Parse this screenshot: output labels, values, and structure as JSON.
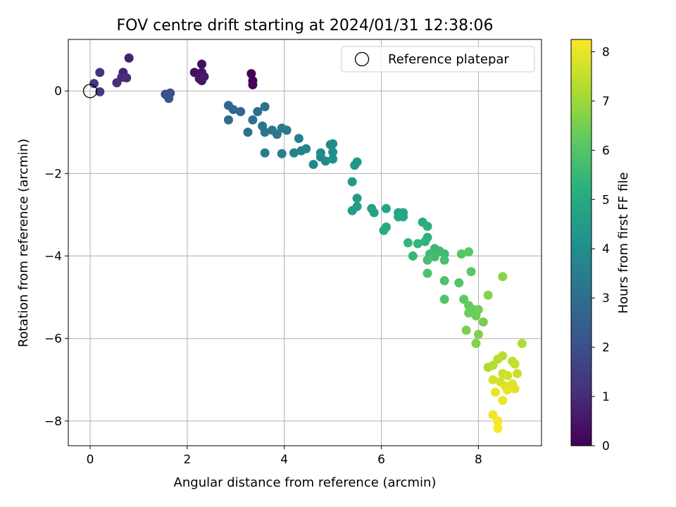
{
  "chart_data": {
    "type": "scatter",
    "title": "FOV centre drift starting at 2024/01/31 12:38:06",
    "xlabel": "Angular distance from reference (arcmin)",
    "ylabel": "Rotation from reference (arcmin)",
    "xlim": [
      -0.45,
      9.3
    ],
    "ylim": [
      -8.6,
      1.25
    ],
    "xticks": [
      0,
      2,
      4,
      6,
      8
    ],
    "yticks": [
      0,
      -2,
      -4,
      -6,
      -8
    ],
    "xtick_labels": [
      "0",
      "2",
      "4",
      "6",
      "8"
    ],
    "ytick_labels": [
      "0",
      "−2",
      "−4",
      "−6",
      "−8"
    ],
    "grid": true,
    "legend": {
      "position": "top-right",
      "label": "Reference platepar"
    },
    "reference_point": {
      "x": 0,
      "y": 0
    },
    "colorbar": {
      "label": "Hours from first FF file",
      "min": 0,
      "max": 8.25,
      "ticks": [
        0,
        1,
        2,
        3,
        4,
        5,
        6,
        7,
        8
      ],
      "tick_labels": [
        "0",
        "1",
        "2",
        "3",
        "4",
        "5",
        "6",
        "7",
        "8"
      ],
      "colormap": "viridis"
    },
    "points": [
      {
        "x": 3.32,
        "y": 0.42,
        "t": 0.05
      },
      {
        "x": 3.35,
        "y": 0.25,
        "t": 0.1
      },
      {
        "x": 3.35,
        "y": 0.15,
        "t": 0.15
      },
      {
        "x": 2.3,
        "y": 0.65,
        "t": 0.3
      },
      {
        "x": 2.15,
        "y": 0.45,
        "t": 0.35
      },
      {
        "x": 2.25,
        "y": 0.4,
        "t": 0.4
      },
      {
        "x": 2.3,
        "y": 0.45,
        "t": 0.45
      },
      {
        "x": 2.25,
        "y": 0.3,
        "t": 0.5
      },
      {
        "x": 2.3,
        "y": 0.25,
        "t": 0.55
      },
      {
        "x": 2.35,
        "y": 0.35,
        "t": 0.6
      },
      {
        "x": 0.8,
        "y": 0.8,
        "t": 0.75
      },
      {
        "x": 0.68,
        "y": 0.45,
        "t": 0.85
      },
      {
        "x": 0.65,
        "y": 0.33,
        "t": 0.95
      },
      {
        "x": 0.75,
        "y": 0.32,
        "t": 1.05
      },
      {
        "x": 0.55,
        "y": 0.2,
        "t": 1.15
      },
      {
        "x": 0.2,
        "y": 0.45,
        "t": 1.3
      },
      {
        "x": 0.08,
        "y": 0.18,
        "t": 1.4
      },
      {
        "x": 0.2,
        "y": -0.02,
        "t": 1.5
      },
      {
        "x": 1.55,
        "y": -0.08,
        "t": 2.0
      },
      {
        "x": 1.65,
        "y": -0.05,
        "t": 2.05
      },
      {
        "x": 1.62,
        "y": -0.18,
        "t": 2.1
      },
      {
        "x": 2.85,
        "y": -0.35,
        "t": 2.7
      },
      {
        "x": 2.95,
        "y": -0.45,
        "t": 2.75
      },
      {
        "x": 3.1,
        "y": -0.5,
        "t": 2.8
      },
      {
        "x": 2.85,
        "y": -0.7,
        "t": 2.85
      },
      {
        "x": 3.35,
        "y": -0.7,
        "t": 2.95
      },
      {
        "x": 3.45,
        "y": -0.5,
        "t": 3.0
      },
      {
        "x": 3.6,
        "y": -0.38,
        "t": 3.05
      },
      {
        "x": 3.25,
        "y": -1.0,
        "t": 3.1
      },
      {
        "x": 3.55,
        "y": -0.85,
        "t": 3.15
      },
      {
        "x": 3.6,
        "y": -1.0,
        "t": 3.2
      },
      {
        "x": 3.75,
        "y": -0.95,
        "t": 3.25
      },
      {
        "x": 3.85,
        "y": -1.05,
        "t": 3.3
      },
      {
        "x": 3.95,
        "y": -0.9,
        "t": 3.35
      },
      {
        "x": 4.05,
        "y": -0.95,
        "t": 3.4
      },
      {
        "x": 3.6,
        "y": -1.5,
        "t": 3.45
      },
      {
        "x": 3.95,
        "y": -1.52,
        "t": 3.5
      },
      {
        "x": 4.3,
        "y": -1.15,
        "t": 3.55
      },
      {
        "x": 4.2,
        "y": -1.5,
        "t": 3.6
      },
      {
        "x": 4.35,
        "y": -1.45,
        "t": 3.65
      },
      {
        "x": 4.45,
        "y": -1.4,
        "t": 3.7
      },
      {
        "x": 4.6,
        "y": -1.78,
        "t": 3.75
      },
      {
        "x": 4.75,
        "y": -1.6,
        "t": 3.8
      },
      {
        "x": 4.85,
        "y": -1.7,
        "t": 3.85
      },
      {
        "x": 4.75,
        "y": -1.5,
        "t": 3.9
      },
      {
        "x": 4.95,
        "y": -1.3,
        "t": 3.95
      },
      {
        "x": 5.0,
        "y": -1.28,
        "t": 4.0
      },
      {
        "x": 5.0,
        "y": -1.48,
        "t": 4.05
      },
      {
        "x": 5.0,
        "y": -1.65,
        "t": 4.1
      },
      {
        "x": 5.5,
        "y": -1.72,
        "t": 4.3
      },
      {
        "x": 5.45,
        "y": -1.8,
        "t": 4.35
      },
      {
        "x": 5.4,
        "y": -2.2,
        "t": 4.4
      },
      {
        "x": 5.5,
        "y": -2.6,
        "t": 4.45
      },
      {
        "x": 5.4,
        "y": -2.9,
        "t": 4.5
      },
      {
        "x": 5.5,
        "y": -2.8,
        "t": 4.55
      },
      {
        "x": 5.8,
        "y": -2.85,
        "t": 4.65
      },
      {
        "x": 5.85,
        "y": -2.95,
        "t": 4.7
      },
      {
        "x": 6.1,
        "y": -2.85,
        "t": 4.75
      },
      {
        "x": 6.35,
        "y": -2.95,
        "t": 4.8
      },
      {
        "x": 6.45,
        "y": -2.95,
        "t": 4.85
      },
      {
        "x": 6.35,
        "y": -3.05,
        "t": 4.9
      },
      {
        "x": 6.45,
        "y": -3.05,
        "t": 4.95
      },
      {
        "x": 6.1,
        "y": -3.3,
        "t": 5.0
      },
      {
        "x": 6.05,
        "y": -3.38,
        "t": 5.05
      },
      {
        "x": 6.85,
        "y": -3.18,
        "t": 5.15
      },
      {
        "x": 6.95,
        "y": -3.28,
        "t": 5.2
      },
      {
        "x": 6.95,
        "y": -3.55,
        "t": 5.25
      },
      {
        "x": 6.9,
        "y": -3.65,
        "t": 5.3
      },
      {
        "x": 6.75,
        "y": -3.7,
        "t": 5.35
      },
      {
        "x": 6.55,
        "y": -3.68,
        "t": 5.4
      },
      {
        "x": 6.65,
        "y": -4.0,
        "t": 5.45
      },
      {
        "x": 7.1,
        "y": -3.82,
        "t": 5.5
      },
      {
        "x": 7.2,
        "y": -3.88,
        "t": 5.55
      },
      {
        "x": 7.3,
        "y": -3.95,
        "t": 5.6
      },
      {
        "x": 7.0,
        "y": -3.95,
        "t": 5.65
      },
      {
        "x": 7.1,
        "y": -4.02,
        "t": 5.7
      },
      {
        "x": 6.95,
        "y": -4.1,
        "t": 5.75
      },
      {
        "x": 7.3,
        "y": -4.1,
        "t": 5.8
      },
      {
        "x": 6.95,
        "y": -4.42,
        "t": 5.85
      },
      {
        "x": 7.3,
        "y": -4.6,
        "t": 5.9
      },
      {
        "x": 7.3,
        "y": -5.05,
        "t": 5.95
      },
      {
        "x": 7.6,
        "y": -4.65,
        "t": 6.0
      },
      {
        "x": 7.65,
        "y": -3.95,
        "t": 6.05
      },
      {
        "x": 7.8,
        "y": -3.9,
        "t": 6.1
      },
      {
        "x": 7.85,
        "y": -4.38,
        "t": 6.15
      },
      {
        "x": 7.7,
        "y": -5.05,
        "t": 6.2
      },
      {
        "x": 7.8,
        "y": -5.2,
        "t": 6.25
      },
      {
        "x": 7.9,
        "y": -5.3,
        "t": 6.3
      },
      {
        "x": 7.8,
        "y": -5.38,
        "t": 6.35
      },
      {
        "x": 7.95,
        "y": -5.45,
        "t": 6.4
      },
      {
        "x": 8.0,
        "y": -5.3,
        "t": 6.45
      },
      {
        "x": 8.1,
        "y": -5.6,
        "t": 6.5
      },
      {
        "x": 7.75,
        "y": -5.8,
        "t": 6.55
      },
      {
        "x": 8.0,
        "y": -5.9,
        "t": 6.6
      },
      {
        "x": 7.95,
        "y": -6.12,
        "t": 6.65
      },
      {
        "x": 8.2,
        "y": -4.95,
        "t": 6.7
      },
      {
        "x": 8.5,
        "y": -4.5,
        "t": 6.75
      },
      {
        "x": 8.9,
        "y": -6.12,
        "t": 7.2
      },
      {
        "x": 8.2,
        "y": -6.7,
        "t": 7.25
      },
      {
        "x": 8.3,
        "y": -6.65,
        "t": 7.3
      },
      {
        "x": 8.4,
        "y": -6.5,
        "t": 7.35
      },
      {
        "x": 8.5,
        "y": -6.42,
        "t": 7.4
      },
      {
        "x": 8.7,
        "y": -6.55,
        "t": 7.45
      },
      {
        "x": 8.75,
        "y": -6.62,
        "t": 7.5
      },
      {
        "x": 8.8,
        "y": -6.85,
        "t": 7.55
      },
      {
        "x": 8.5,
        "y": -6.85,
        "t": 7.6
      },
      {
        "x": 8.6,
        "y": -6.9,
        "t": 7.65
      },
      {
        "x": 8.3,
        "y": -7.0,
        "t": 7.7
      },
      {
        "x": 8.45,
        "y": -7.05,
        "t": 7.75
      },
      {
        "x": 8.55,
        "y": -7.15,
        "t": 7.8
      },
      {
        "x": 8.7,
        "y": -7.1,
        "t": 7.85
      },
      {
        "x": 8.75,
        "y": -7.22,
        "t": 7.9
      },
      {
        "x": 8.6,
        "y": -7.25,
        "t": 7.95
      },
      {
        "x": 8.35,
        "y": -7.3,
        "t": 8.0
      },
      {
        "x": 8.5,
        "y": -7.5,
        "t": 8.05
      },
      {
        "x": 8.3,
        "y": -7.85,
        "t": 8.1
      },
      {
        "x": 8.4,
        "y": -8.0,
        "t": 8.15
      },
      {
        "x": 8.4,
        "y": -8.18,
        "t": 8.2
      }
    ]
  }
}
